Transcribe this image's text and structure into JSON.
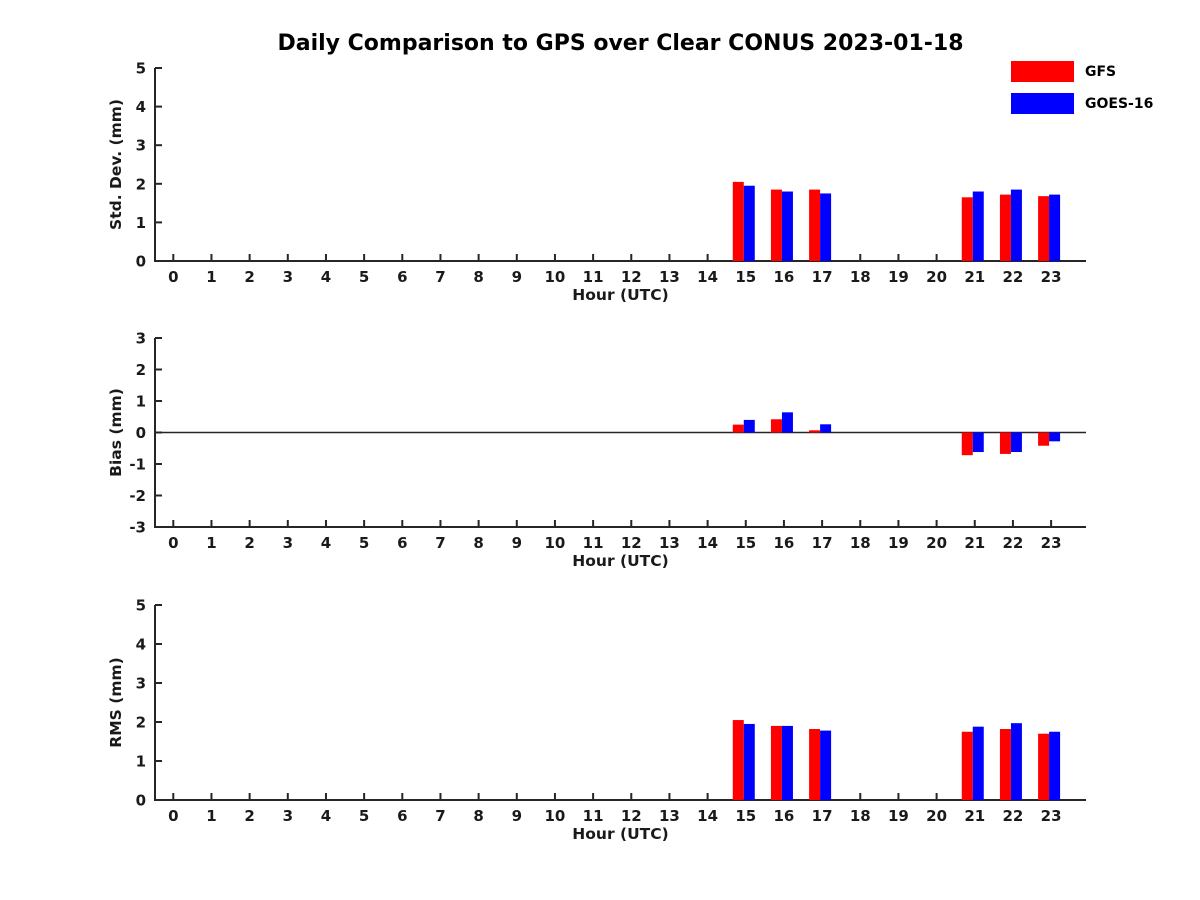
{
  "title": "Daily Comparison to GPS over Clear CONUS 2023-01-18",
  "legend": {
    "items": [
      {
        "label": "GFS",
        "color": "#ff0000"
      },
      {
        "label": "GOES-16",
        "color": "#0000ff"
      }
    ]
  },
  "colors": {
    "axis": "#262626",
    "gfs": "#ff0000",
    "goes16": "#0000ff"
  },
  "chart_data": [
    {
      "type": "bar",
      "name": "std-dev",
      "ylabel": "Std. Dev. (mm)",
      "xlabel": "Hour (UTC)",
      "ylim": [
        0,
        5
      ],
      "yticks": [
        0,
        1,
        2,
        3,
        4,
        5
      ],
      "zero_line": false,
      "grid": false,
      "legend_position": "top-right-figure",
      "categories": [
        0,
        1,
        2,
        3,
        4,
        5,
        6,
        7,
        8,
        9,
        10,
        11,
        12,
        13,
        14,
        15,
        16,
        17,
        18,
        19,
        20,
        21,
        22,
        23
      ],
      "series": [
        {
          "name": "GFS",
          "color": "#ff0000",
          "values": [
            null,
            null,
            null,
            null,
            null,
            null,
            null,
            null,
            null,
            null,
            null,
            null,
            null,
            null,
            null,
            2.05,
            1.85,
            1.85,
            null,
            null,
            null,
            1.65,
            1.72,
            1.68
          ]
        },
        {
          "name": "GOES-16",
          "color": "#0000ff",
          "values": [
            null,
            null,
            null,
            null,
            null,
            null,
            null,
            null,
            null,
            null,
            null,
            null,
            null,
            null,
            null,
            1.95,
            1.8,
            1.75,
            null,
            null,
            null,
            1.8,
            1.85,
            1.72
          ]
        }
      ]
    },
    {
      "type": "bar",
      "name": "bias",
      "ylabel": "Bias (mm)",
      "xlabel": "Hour (UTC)",
      "ylim": [
        -3,
        3
      ],
      "yticks": [
        -3,
        -2,
        -1,
        0,
        1,
        2,
        3
      ],
      "zero_line": true,
      "grid": false,
      "categories": [
        0,
        1,
        2,
        3,
        4,
        5,
        6,
        7,
        8,
        9,
        10,
        11,
        12,
        13,
        14,
        15,
        16,
        17,
        18,
        19,
        20,
        21,
        22,
        23
      ],
      "series": [
        {
          "name": "GFS",
          "color": "#ff0000",
          "values": [
            null,
            null,
            null,
            null,
            null,
            null,
            null,
            null,
            null,
            null,
            null,
            null,
            null,
            null,
            null,
            0.25,
            0.42,
            0.07,
            null,
            null,
            null,
            -0.72,
            -0.68,
            -0.42
          ]
        },
        {
          "name": "GOES-16",
          "color": "#0000ff",
          "values": [
            null,
            null,
            null,
            null,
            null,
            null,
            null,
            null,
            null,
            null,
            null,
            null,
            null,
            null,
            null,
            0.4,
            0.64,
            0.26,
            null,
            null,
            null,
            -0.62,
            -0.62,
            -0.28
          ]
        }
      ]
    },
    {
      "type": "bar",
      "name": "rms",
      "ylabel": "RMS (mm)",
      "xlabel": "Hour (UTC)",
      "ylim": [
        0,
        5
      ],
      "yticks": [
        0,
        1,
        2,
        3,
        4,
        5
      ],
      "zero_line": false,
      "grid": false,
      "categories": [
        0,
        1,
        2,
        3,
        4,
        5,
        6,
        7,
        8,
        9,
        10,
        11,
        12,
        13,
        14,
        15,
        16,
        17,
        18,
        19,
        20,
        21,
        22,
        23
      ],
      "series": [
        {
          "name": "GFS",
          "color": "#ff0000",
          "values": [
            null,
            null,
            null,
            null,
            null,
            null,
            null,
            null,
            null,
            null,
            null,
            null,
            null,
            null,
            null,
            2.05,
            1.9,
            1.82,
            null,
            null,
            null,
            1.75,
            1.82,
            1.7
          ]
        },
        {
          "name": "GOES-16",
          "color": "#0000ff",
          "values": [
            null,
            null,
            null,
            null,
            null,
            null,
            null,
            null,
            null,
            null,
            null,
            null,
            null,
            null,
            null,
            1.95,
            1.9,
            1.78,
            null,
            null,
            null,
            1.88,
            1.97,
            1.75
          ]
        }
      ]
    }
  ]
}
